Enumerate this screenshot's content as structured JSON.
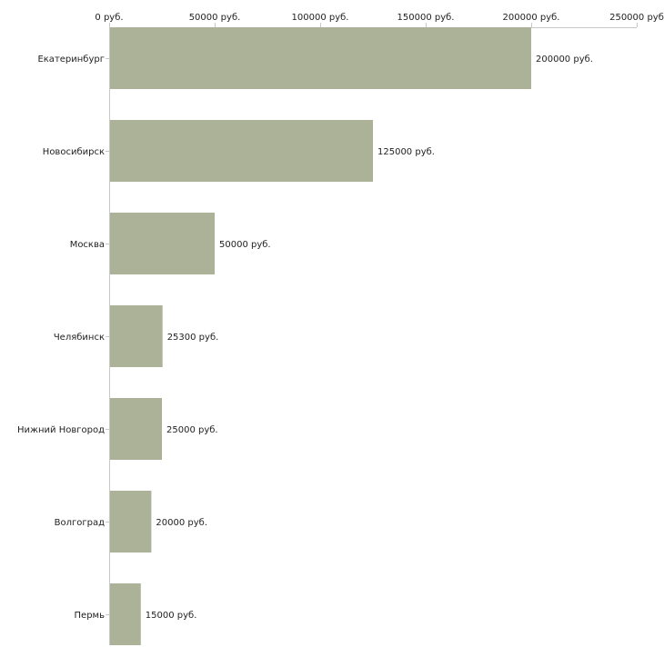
{
  "chart_data": {
    "type": "bar",
    "orientation": "horizontal",
    "title": "",
    "xlabel": "",
    "ylabel": "",
    "axis_position": "top",
    "xlim": [
      0,
      250000
    ],
    "ticks": [
      0,
      50000,
      100000,
      150000,
      200000,
      250000
    ],
    "tick_labels": [
      "0 руб.",
      "50000 руб.",
      "100000 руб.",
      "150000 руб.",
      "200000 руб.",
      "250000 руб"
    ],
    "categories": [
      "Екатеринбург",
      "Новосибирск",
      "Москва",
      "Челябинск",
      "Нижний Новгород",
      "Волгоград",
      "Пермь"
    ],
    "values": [
      200000,
      125000,
      50000,
      25300,
      25000,
      20000,
      15000
    ],
    "value_labels": [
      "200000 руб.",
      "125000 руб.",
      "50000 руб.",
      "25300 руб.",
      "25000 руб.",
      "20000 руб.",
      "15000 руб."
    ],
    "bar_color": "#acb297",
    "axis_color": "#c8c8c8",
    "grid": false,
    "legend": "none"
  }
}
